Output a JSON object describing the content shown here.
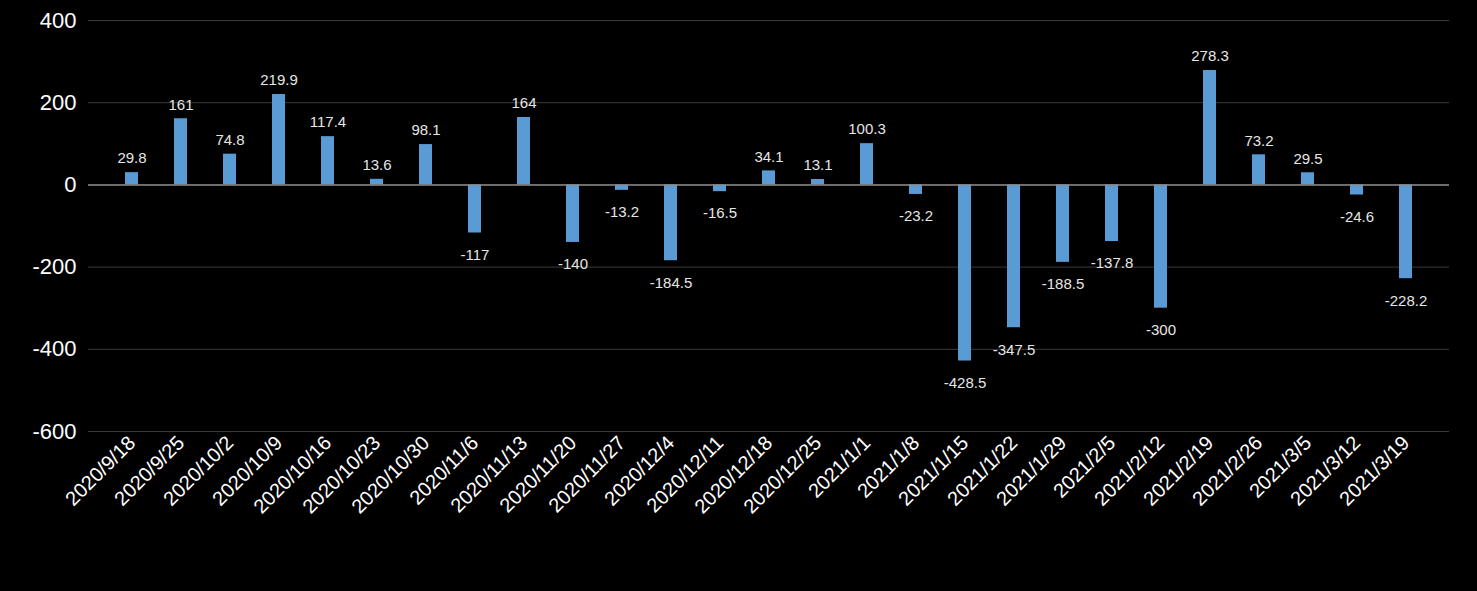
{
  "chart_data": {
    "type": "bar",
    "categories": [
      "2020/9/18",
      "2020/9/25",
      "2020/10/2",
      "2020/10/9",
      "2020/10/16",
      "2020/10/23",
      "2020/10/30",
      "2020/11/6",
      "2020/11/13",
      "2020/11/20",
      "2020/11/27",
      "2020/12/4",
      "2020/12/11",
      "2020/12/18",
      "2020/12/25",
      "2021/1/1",
      "2021/1/8",
      "2021/1/15",
      "2021/1/22",
      "2021/1/29",
      "2021/2/5",
      "2021/2/12",
      "2021/2/19",
      "2021/2/26",
      "2021/3/5",
      "2021/3/12",
      "2021/3/19"
    ],
    "values": [
      29.8,
      161,
      74.8,
      219.9,
      117.4,
      13.6,
      98.1,
      -117,
      164,
      -140,
      -13.2,
      -184.5,
      -16.5,
      34.1,
      13.1,
      100.3,
      -23.2,
      -428.5,
      -347.5,
      -188.5,
      -137.8,
      -300,
      278.3,
      73.2,
      29.5,
      -24.6,
      -228.2
    ],
    "color": "#5b9bd5",
    "ylim": [
      -600,
      400
    ],
    "yticks": [
      -600,
      -400,
      -200,
      0,
      200,
      400
    ],
    "grid": true,
    "data_labels": true
  }
}
